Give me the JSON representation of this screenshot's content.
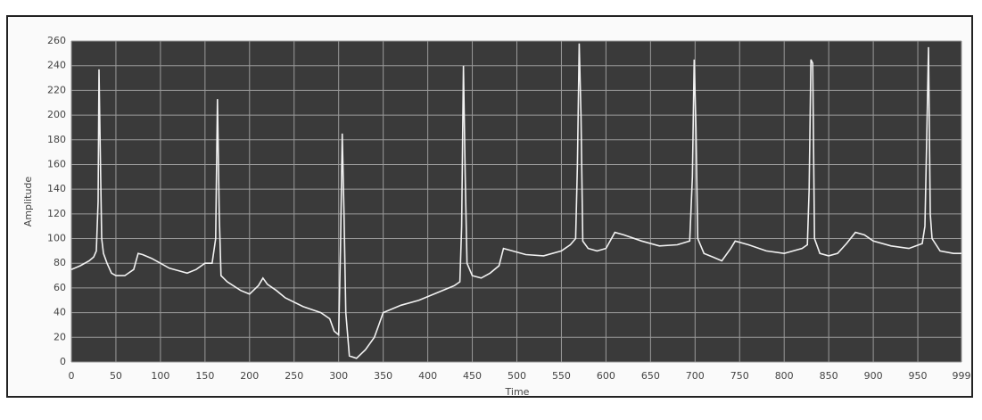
{
  "chart_data": {
    "type": "line",
    "x_label": "Time",
    "y_label": "Amplitude",
    "x": [
      0,
      10,
      20,
      25,
      28,
      30,
      31,
      32,
      34,
      36,
      40,
      45,
      50,
      60,
      70,
      75,
      80,
      90,
      100,
      110,
      120,
      130,
      140,
      150,
      158,
      162,
      164,
      166,
      168,
      175,
      190,
      200,
      210,
      215,
      220,
      230,
      240,
      260,
      280,
      290,
      295,
      300,
      302,
      304,
      306,
      308,
      312,
      320,
      330,
      340,
      345,
      350,
      370,
      390,
      410,
      430,
      436,
      438,
      440,
      442,
      444,
      450,
      460,
      470,
      480,
      485,
      495,
      510,
      530,
      550,
      560,
      566,
      568,
      570,
      572,
      574,
      580,
      590,
      600,
      610,
      620,
      640,
      660,
      680,
      694,
      697,
      699,
      701,
      703,
      710,
      720,
      730,
      740,
      745,
      760,
      780,
      800,
      820,
      826,
      828,
      830,
      832,
      834,
      840,
      850,
      860,
      870,
      880,
      890,
      900,
      920,
      940,
      955,
      958,
      960,
      962,
      964,
      966,
      975,
      990,
      999
    ],
    "series": [
      {
        "color": "#f2f2f2",
        "values": [
          75,
          78,
          82,
          85,
          90,
          130,
          237,
          190,
          100,
          88,
          80,
          72,
          70,
          70,
          75,
          88,
          87,
          84,
          80,
          76,
          74,
          72,
          75,
          80,
          80,
          100,
          213,
          120,
          70,
          65,
          58,
          55,
          62,
          68,
          63,
          58,
          52,
          45,
          40,
          35,
          25,
          22,
          90,
          185,
          120,
          40,
          5,
          3,
          10,
          20,
          30,
          40,
          46,
          50,
          56,
          62,
          65,
          110,
          240,
          150,
          80,
          70,
          68,
          72,
          78,
          92,
          90,
          87,
          86,
          90,
          95,
          100,
          160,
          258,
          200,
          98,
          92,
          90,
          92,
          105,
          103,
          98,
          94,
          95,
          98,
          150,
          245,
          190,
          100,
          88,
          85,
          82,
          92,
          98,
          95,
          90,
          88,
          92,
          95,
          140,
          245,
          242,
          100,
          88,
          86,
          88,
          96,
          105,
          103,
          98,
          94,
          92,
          96,
          110,
          180,
          255,
          120,
          100,
          90,
          88,
          88
        ]
      }
    ],
    "xlim": [
      0,
      999
    ],
    "ylim": [
      0,
      260
    ],
    "xticks": [
      0,
      50,
      100,
      150,
      200,
      250,
      300,
      350,
      400,
      450,
      500,
      550,
      600,
      650,
      700,
      750,
      800,
      850,
      900,
      950,
      999
    ],
    "yticks": [
      0,
      20,
      40,
      60,
      80,
      100,
      120,
      140,
      160,
      180,
      200,
      220,
      240,
      260
    ],
    "grid": true,
    "background": "#3a3a3a",
    "grid_color": "#9a9a9a"
  }
}
